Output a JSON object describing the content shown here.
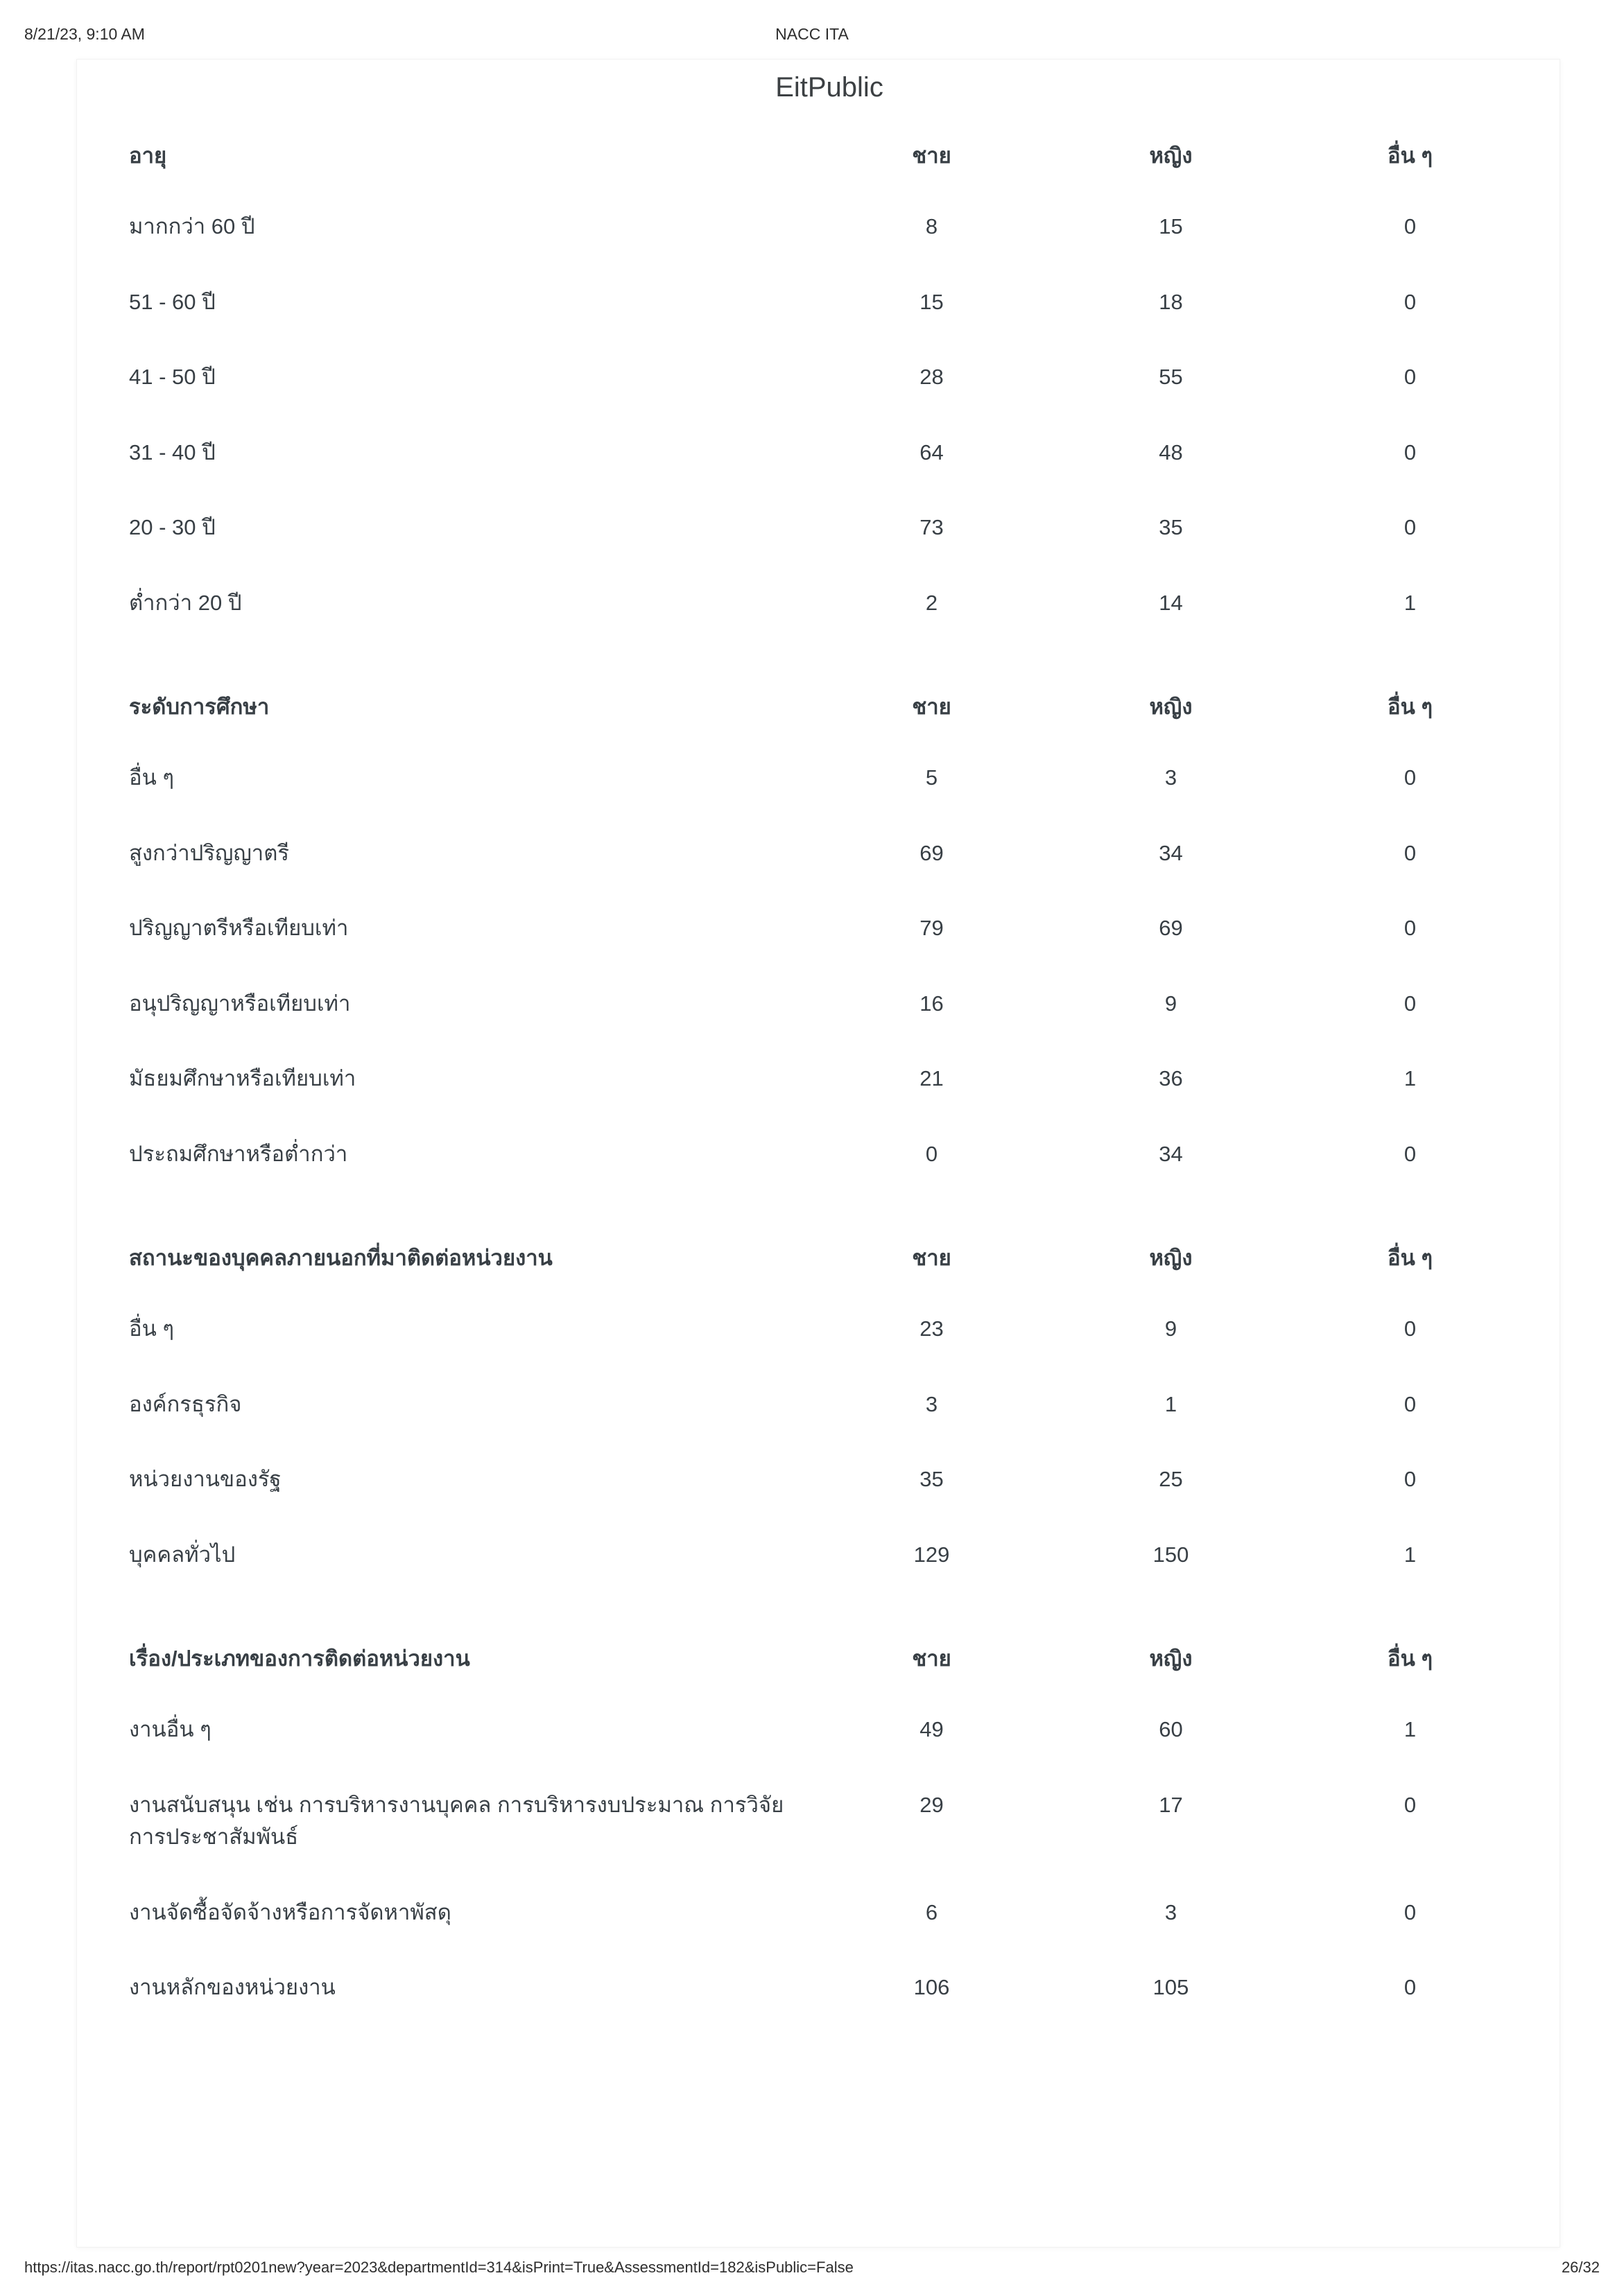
{
  "header": {
    "printed_date": "8/21/23, 9:10 AM",
    "site": "NACC ITA"
  },
  "title": "EitPublic",
  "columns": [
    "ชาย",
    "หญิง",
    "อื่น ๆ"
  ],
  "tables": [
    {
      "header": "อายุ",
      "rows": [
        {
          "label": "มากกว่า 60 ปี",
          "values": [
            "8",
            "15",
            "0"
          ]
        },
        {
          "label": "51 - 60 ปี",
          "values": [
            "15",
            "18",
            "0"
          ]
        },
        {
          "label": "41 - 50 ปี",
          "values": [
            "28",
            "55",
            "0"
          ]
        },
        {
          "label": "31 - 40 ปี",
          "values": [
            "64",
            "48",
            "0"
          ]
        },
        {
          "label": "20 - 30 ปี",
          "values": [
            "73",
            "35",
            "0"
          ]
        },
        {
          "label": "ต่ำกว่า 20 ปี",
          "values": [
            "2",
            "14",
            "1"
          ]
        }
      ]
    },
    {
      "header": "ระดับการศึกษา",
      "rows": [
        {
          "label": "อื่น ๆ",
          "values": [
            "5",
            "3",
            "0"
          ]
        },
        {
          "label": "สูงกว่าปริญญาตรี",
          "values": [
            "69",
            "34",
            "0"
          ]
        },
        {
          "label": "ปริญญาตรีหรือเทียบเท่า",
          "values": [
            "79",
            "69",
            "0"
          ]
        },
        {
          "label": "อนุปริญญาหรือเทียบเท่า",
          "values": [
            "16",
            "9",
            "0"
          ]
        },
        {
          "label": "มัธยมศึกษาหรือเทียบเท่า",
          "values": [
            "21",
            "36",
            "1"
          ]
        },
        {
          "label": "ประถมศึกษาหรือต่ำกว่า",
          "values": [
            "0",
            "34",
            "0"
          ]
        }
      ]
    },
    {
      "header": "สถานะของบุคคลภายนอกที่มาติดต่อหน่วยงาน",
      "rows": [
        {
          "label": "อื่น ๆ",
          "values": [
            "23",
            "9",
            "0"
          ]
        },
        {
          "label": "องค์กรธุรกิจ",
          "values": [
            "3",
            "1",
            "0"
          ]
        },
        {
          "label": "หน่วยงานของรัฐ",
          "values": [
            "35",
            "25",
            "0"
          ]
        },
        {
          "label": "บุคคลทั่วไป",
          "values": [
            "129",
            "150",
            "1"
          ]
        }
      ]
    },
    {
      "header": "เรื่อง/ประเภทของการติดต่อหน่วยงาน",
      "rows": [
        {
          "label": "งานอื่น ๆ",
          "values": [
            "49",
            "60",
            "1"
          ]
        },
        {
          "label": "งานสนับสนุน เช่น การบริหารงานบุคคล การบริหารงบประมาณ การวิจัย การประชาสัมพันธ์",
          "values": [
            "29",
            "17",
            "0"
          ]
        },
        {
          "label": "งานจัดซื้อจัดจ้างหรือการจัดหาพัสดุ",
          "values": [
            "6",
            "3",
            "0"
          ]
        },
        {
          "label": "งานหลักของหน่วยงาน",
          "values": [
            "106",
            "105",
            "0"
          ]
        }
      ]
    }
  ],
  "footer": {
    "url": "https://itas.nacc.go.th/report/rpt0201new?year=2023&departmentId=314&isPrint=True&AssessmentId=182&isPublic=False",
    "page_indicator": "26/32"
  }
}
